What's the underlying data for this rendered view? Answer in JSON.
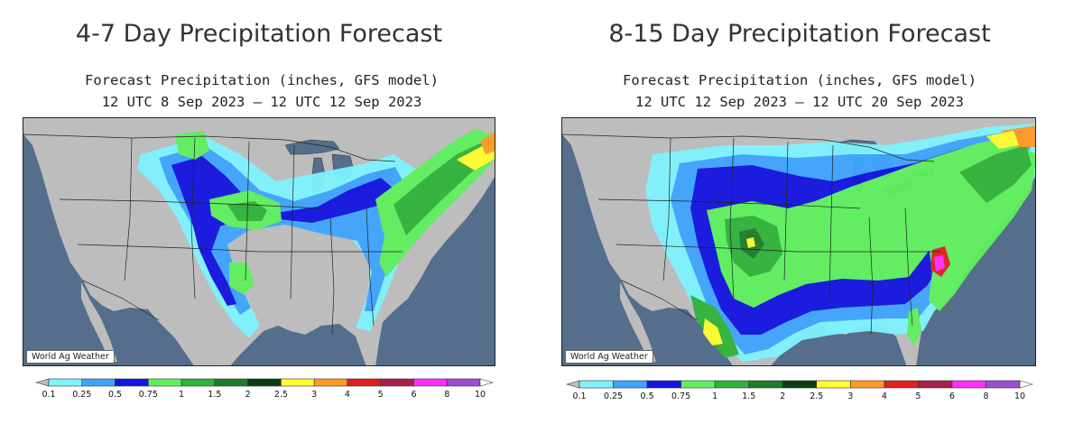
{
  "colors": {
    "land": "#bdbdbd",
    "water": "#546e8c",
    "border": "#222222",
    "bins": [
      "#bdbdbd",
      "#7ff3ff",
      "#3fa4ff",
      "#1414e0",
      "#5ef05e",
      "#2fb33a",
      "#1e7d28",
      "#0c3e12",
      "#ffff2e",
      "#ff9a26",
      "#e02020",
      "#a8204a",
      "#ff2eff",
      "#9b4fd0",
      "#ffffff"
    ]
  },
  "legend_ticks": [
    "0.1",
    "0.25",
    "0.5",
    "0.75",
    "1",
    "1.5",
    "2",
    "2.5",
    "3",
    "4",
    "5",
    "6",
    "8",
    "10"
  ],
  "panels": [
    {
      "title": "4-7 Day Precipitation Forecast",
      "subtitle": "Forecast Precipitation (inches, GFS model)",
      "period": "12 UTC 8 Sep 2023 – 12 UTC 12 Sep 2023",
      "credit": "World Ag Weather"
    },
    {
      "title": "8-15 Day Precipitation Forecast",
      "subtitle": "Forecast Precipitation (inches, GFS model)",
      "period": "12 UTC 12 Sep 2023 – 12 UTC 20 Sep 2023",
      "credit": "World Ag Weather"
    }
  ]
}
